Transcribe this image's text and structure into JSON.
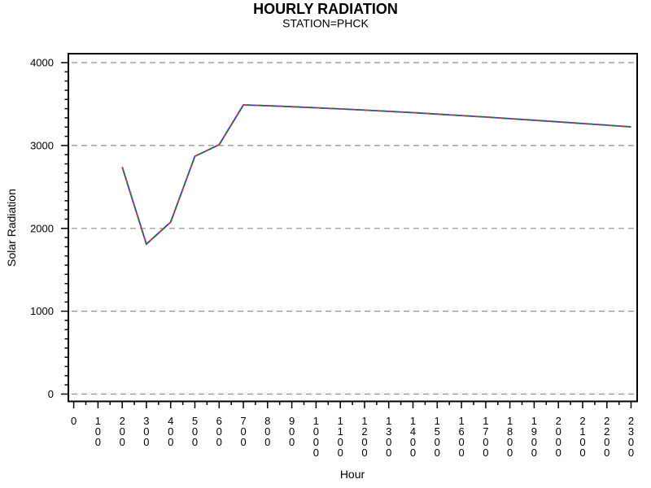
{
  "chart_data": {
    "type": "line",
    "title": "HOURLY RADIATION",
    "subtitle": "STATION=PHCK",
    "xlabel": "Hour",
    "ylabel": "Solar Radiation",
    "x_categories": [
      "0",
      "100",
      "200",
      "300",
      "400",
      "500",
      "600",
      "700",
      "800",
      "900",
      "1000",
      "1100",
      "1200",
      "1300",
      "1400",
      "1500",
      "1600",
      "1700",
      "1800",
      "1900",
      "2000",
      "2100",
      "2200",
      "2300"
    ],
    "y_ticks": [
      0,
      1000,
      2000,
      3000,
      4000
    ],
    "ylim": [
      0,
      4000
    ],
    "y_minor_per_major": 8,
    "x_minor_per_major": 1,
    "grid": "horizontal dashed gridlines at each major y tick",
    "grid_color": "#8f8f8f",
    "frame_color": "#000000",
    "line_colors": [
      "#c0394a",
      "#1e7a2e",
      "#3a3ac8"
    ],
    "legend": "none",
    "series": [
      {
        "name": "Solar Radiation",
        "x": [
          200,
          300,
          400,
          500,
          600,
          700,
          800,
          900,
          1000,
          1100,
          1200,
          1300,
          1400,
          1500,
          1600,
          1700,
          1800,
          1900,
          2000,
          2100,
          2200,
          2300
        ],
        "values": [
          2740,
          1810,
          2075,
          2870,
          3010,
          3490,
          3480,
          3468,
          3455,
          3441,
          3427,
          3412,
          3396,
          3379,
          3361,
          3343,
          3324,
          3305,
          3285,
          3265,
          3245,
          3225
        ]
      }
    ]
  }
}
